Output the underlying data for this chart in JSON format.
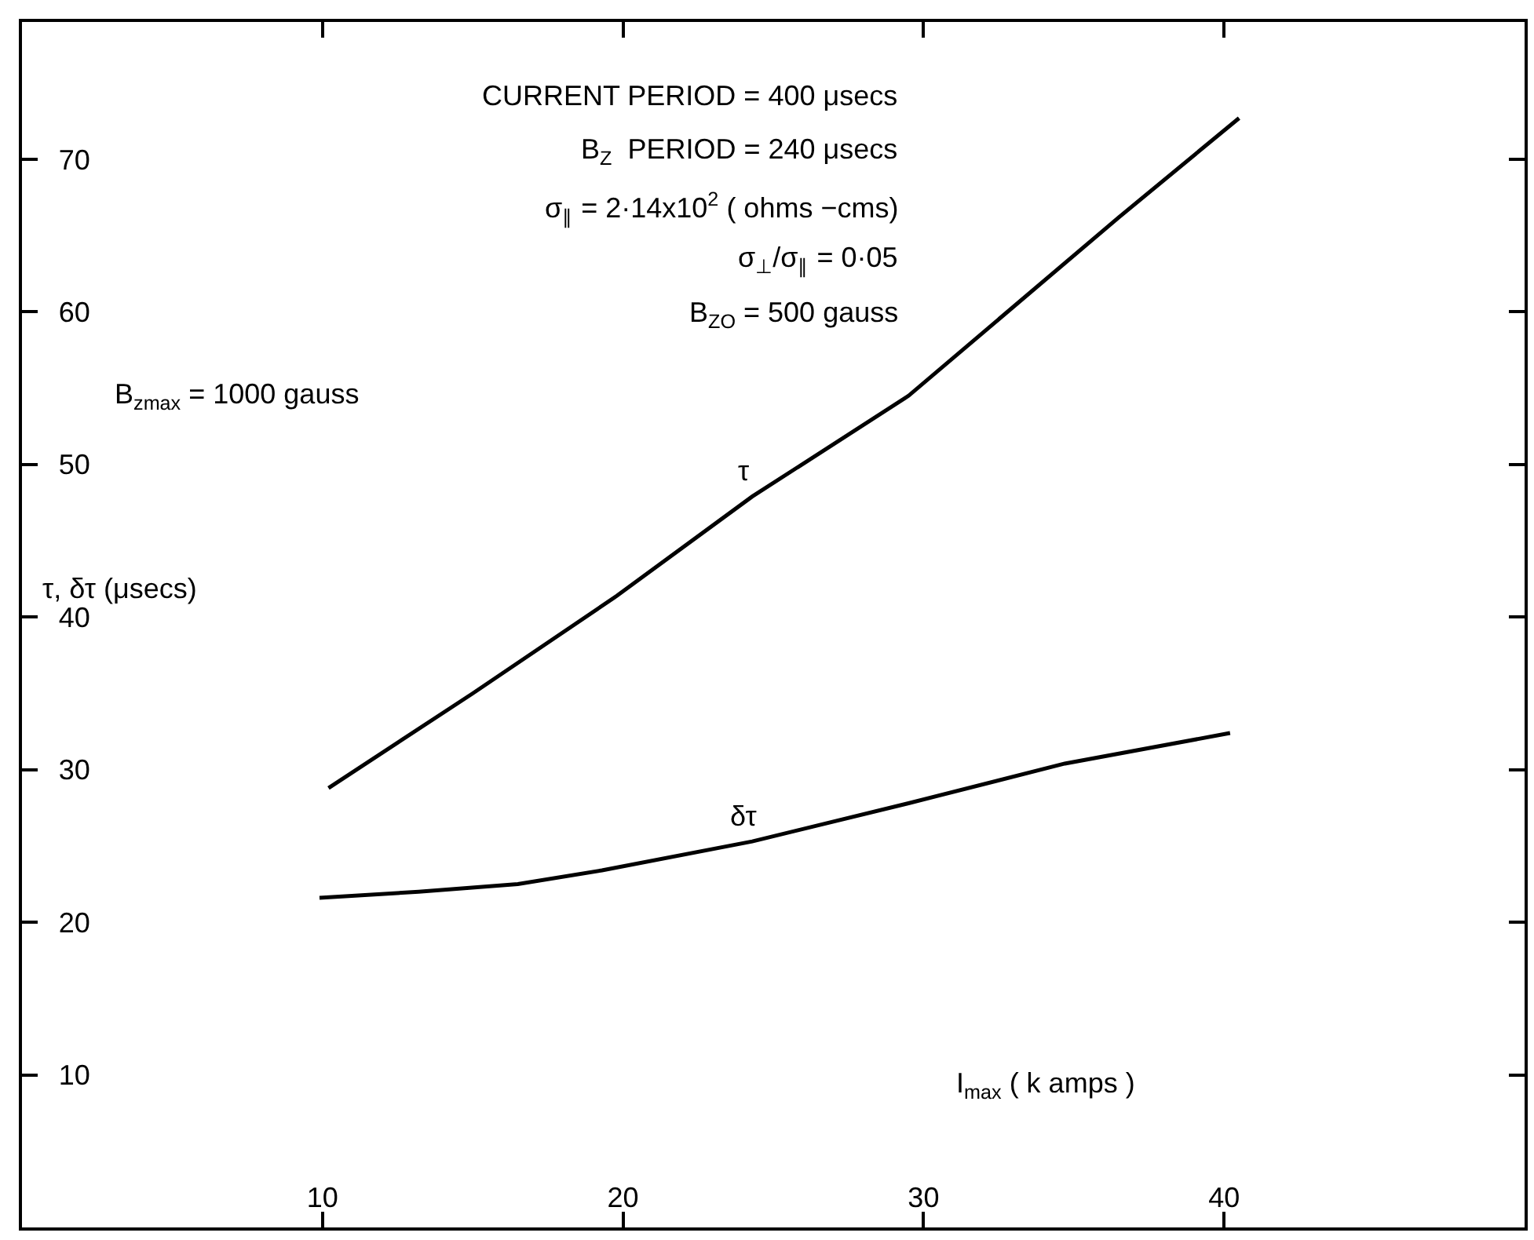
{
  "chart_data": {
    "type": "line",
    "xlabel": "I$_{max}$ ( k amps )",
    "ylabel": "τ, δτ (μsecs)",
    "xlim": [
      0,
      50
    ],
    "xticks": [
      10,
      20,
      30,
      40
    ],
    "ylim": [
      0,
      79
    ],
    "yticks": [
      10,
      20,
      30,
      40,
      50,
      60,
      70
    ],
    "legend": false,
    "marker": "none",
    "line_style": "solid",
    "series": [
      {
        "name": "τ",
        "color": "#000000",
        "x": [
          10.2,
          15.0,
          19.8,
          24.3,
          29.5,
          36.5,
          40.5
        ],
        "values": [
          28.8,
          35.0,
          41.4,
          47.9,
          54.5,
          66.2,
          72.7
        ]
      },
      {
        "name": "δτ",
        "color": "#000000",
        "x": [
          9.9,
          13.2,
          16.5,
          19.3,
          24.3,
          29.5,
          34.7,
          40.2
        ],
        "values": [
          21.6,
          22.0,
          22.5,
          23.4,
          25.3,
          27.8,
          30.4,
          32.4
        ]
      }
    ],
    "annotations": [
      "CURRENT PERIOD = 400 μsecs",
      "B$_{Z}$  PERIOD = 240 μsecs",
      "σ$_{∥}$ = 2·14x10$^{2}$ ( ohms −cms)",
      "σ$_{⊥}$/σ$_{∥}$ = 0·05",
      "B$_{ZO}$ = 500 gauss",
      "B$_{zmax}$ = 1000 gauss"
    ]
  }
}
